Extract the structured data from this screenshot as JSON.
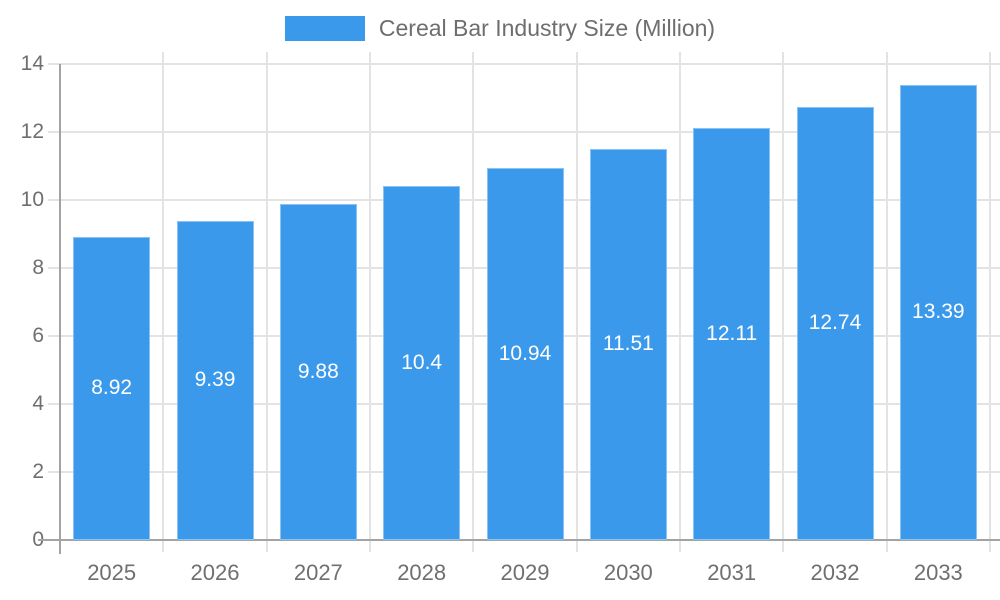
{
  "chart_data": {
    "type": "bar",
    "title": "",
    "legend": {
      "label": "Cereal Bar Industry Size (Million)",
      "position": "top"
    },
    "categories": [
      "2025",
      "2026",
      "2027",
      "2028",
      "2029",
      "2030",
      "2031",
      "2032",
      "2033"
    ],
    "series": [
      {
        "name": "Cereal Bar Industry Size (Million)",
        "values": [
          8.92,
          9.39,
          9.88,
          10.4,
          10.94,
          11.51,
          12.11,
          12.74,
          13.39
        ],
        "labels": [
          "8.92",
          "9.39",
          "9.88",
          "10.4",
          "10.94",
          "11.51",
          "12.11",
          "12.74",
          "13.39"
        ]
      }
    ],
    "xlabel": "",
    "ylabel": "",
    "ylim": [
      0,
      14
    ],
    "yticks": [
      0,
      2,
      4,
      6,
      8,
      10,
      12,
      14
    ],
    "grid": true,
    "value_labels_inside_bars": true,
    "colors": {
      "bar": "#3B99EC",
      "grid": "#E3E3E3",
      "axis": "#A3A3A3",
      "tick_label": "#6F6F6F",
      "bar_value_label": "#FFFFFF",
      "legend_text": "#6E6E6E",
      "background": "#FFFFFF"
    }
  }
}
